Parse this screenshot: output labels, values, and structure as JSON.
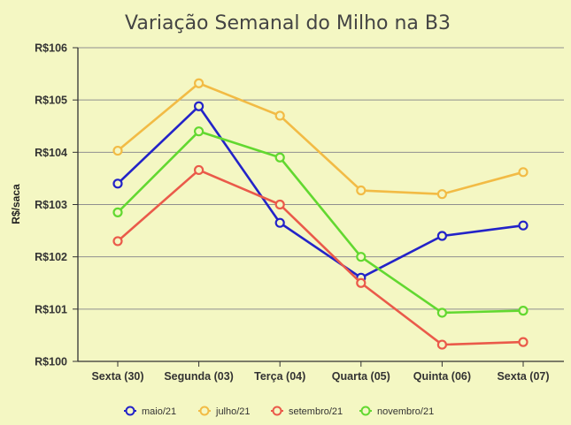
{
  "chart_data": {
    "type": "line",
    "title": "Variação Semanal do Milho na B3",
    "xlabel": "",
    "ylabel": "R$/saca",
    "categories": [
      "Sexta (30)",
      "Segunda (03)",
      "Terça (04)",
      "Quarta (05)",
      "Quinta (06)",
      "Sexta (07)"
    ],
    "ylim": [
      100,
      106
    ],
    "yticks": [
      100,
      101,
      102,
      103,
      104,
      105,
      106
    ],
    "ytick_labels": [
      "R$100",
      "R$101",
      "R$102",
      "R$103",
      "R$104",
      "R$105",
      "R$106"
    ],
    "grid": "horizontal",
    "legend_position": "bottom",
    "series": [
      {
        "name": "maio/21",
        "color": "#2323c8",
        "values": [
          103.4,
          104.88,
          102.65,
          101.6,
          102.4,
          102.6
        ]
      },
      {
        "name": "julho/21",
        "color": "#f2bb45",
        "values": [
          104.03,
          105.32,
          104.7,
          103.27,
          103.2,
          103.62
        ]
      },
      {
        "name": "setembro/21",
        "color": "#ea5a4a",
        "values": [
          102.3,
          103.66,
          103.0,
          101.5,
          100.32,
          100.37
        ]
      },
      {
        "name": "novembro/21",
        "color": "#62d830",
        "values": [
          102.85,
          104.4,
          103.9,
          102.0,
          100.93,
          100.97
        ]
      }
    ]
  }
}
